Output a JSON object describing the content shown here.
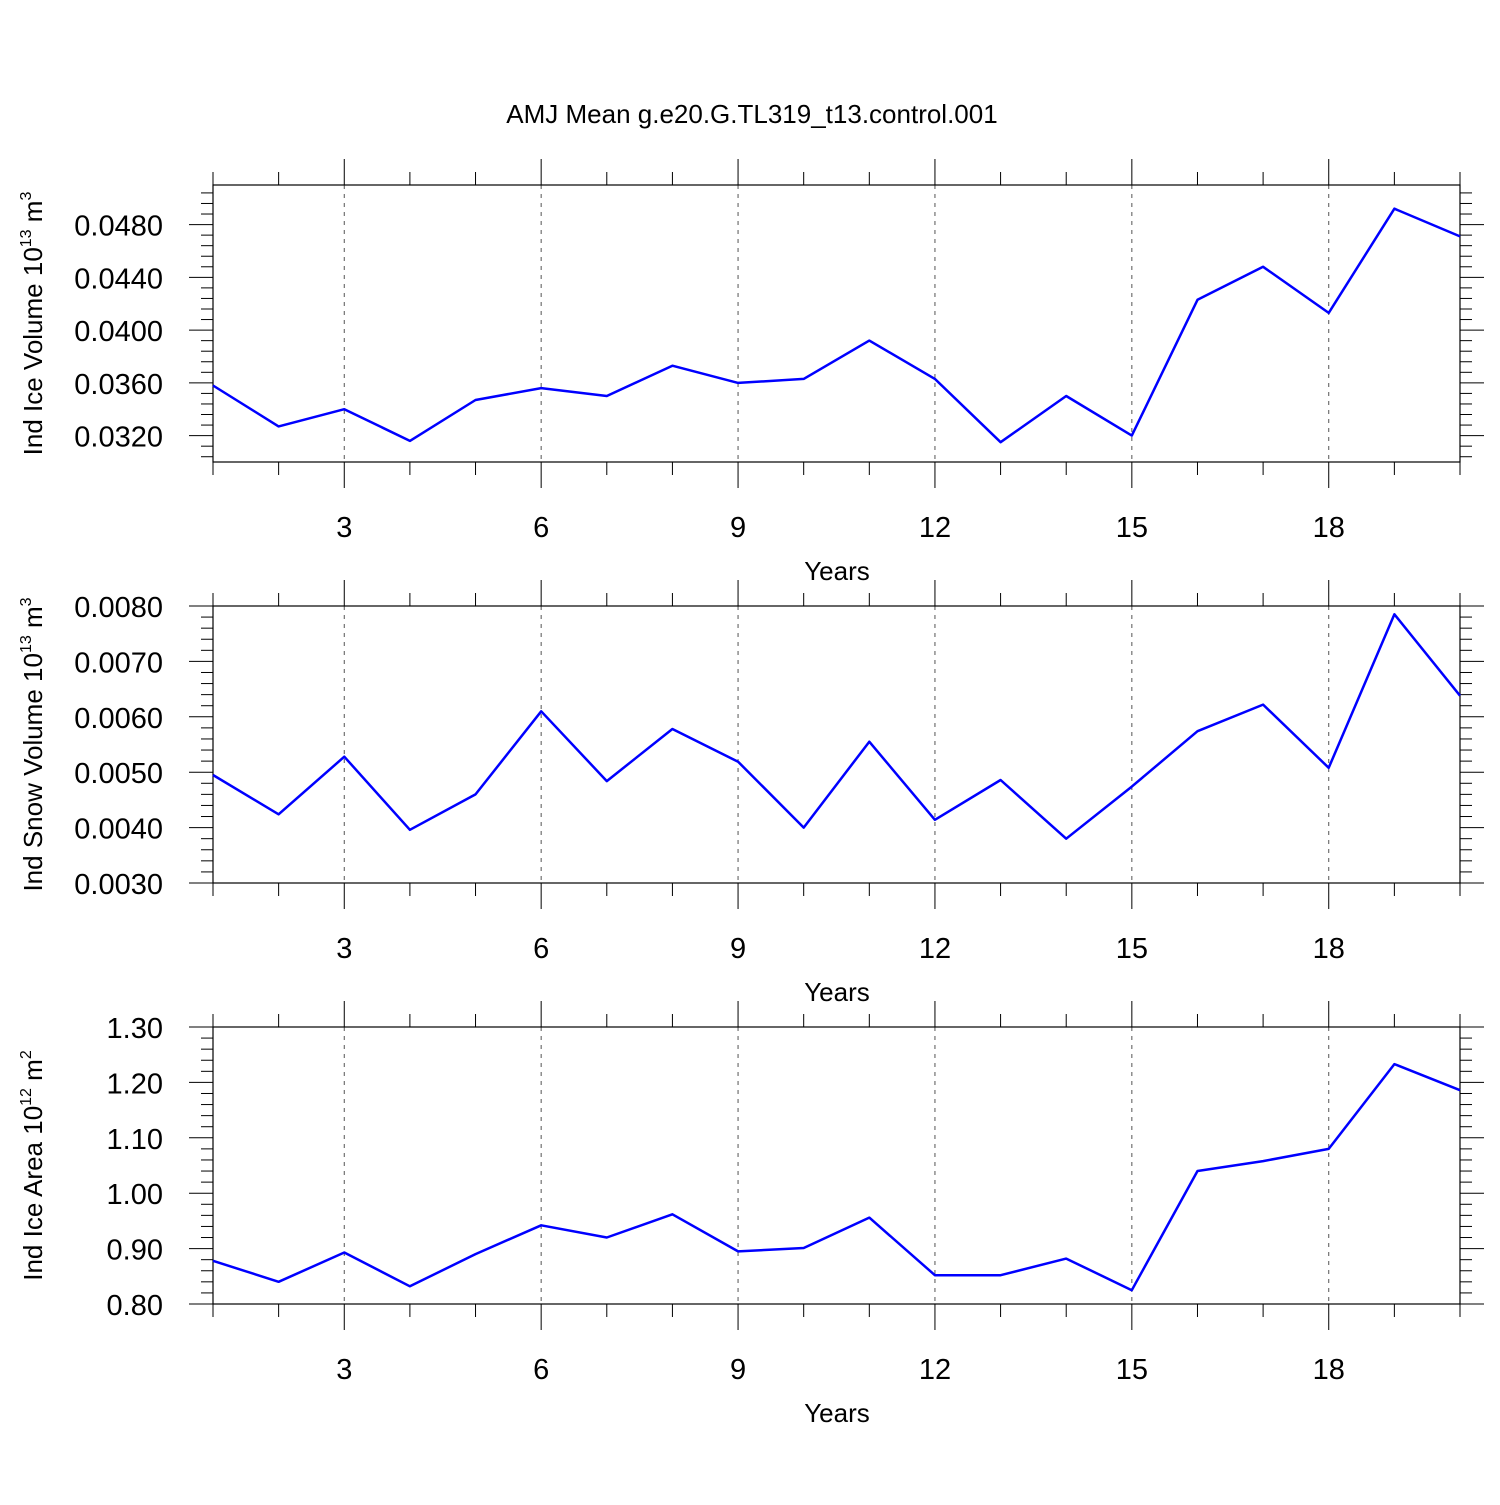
{
  "title": "AMJ Mean g.e20.G.TL319_t13.control.001",
  "colors": {
    "line": "#0000ff",
    "axis": "#000000",
    "grid": "#555555"
  },
  "chart_data": [
    {
      "type": "line",
      "xlabel": "Years",
      "ylabel_text": "Ind Ice Volume 10",
      "ylabel_exp": "13",
      "ylabel_unit": " m",
      "ylabel_unit_exp": "3",
      "xlim": [
        1,
        20
      ],
      "ylim": [
        0.03,
        0.051
      ],
      "xticks": [
        3,
        6,
        9,
        12,
        15,
        18
      ],
      "xtick_labels": [
        "3",
        "6",
        "9",
        "12",
        "15",
        "18"
      ],
      "yticks": [
        0.032,
        0.036,
        0.04,
        0.044,
        0.048
      ],
      "ytick_labels": [
        "0.0320",
        "0.0360",
        "0.0400",
        "0.0440",
        "0.0480"
      ],
      "grid": "vertical dashed at x ticks",
      "x": [
        1,
        2,
        3,
        4,
        5,
        6,
        7,
        8,
        9,
        10,
        11,
        12,
        13,
        14,
        15,
        16,
        17,
        18,
        19,
        20
      ],
      "values": [
        0.0358,
        0.0327,
        0.034,
        0.0316,
        0.0347,
        0.0356,
        0.035,
        0.0373,
        0.036,
        0.0363,
        0.0392,
        0.0363,
        0.0315,
        0.035,
        0.032,
        0.0423,
        0.0448,
        0.0413,
        0.0492,
        0.0471
      ]
    },
    {
      "type": "line",
      "xlabel": "Years",
      "ylabel_text": "Ind Snow Volume 10",
      "ylabel_exp": "13",
      "ylabel_unit": " m",
      "ylabel_unit_exp": "3",
      "xlim": [
        1,
        20
      ],
      "ylim": [
        0.003,
        0.008
      ],
      "xticks": [
        3,
        6,
        9,
        12,
        15,
        18
      ],
      "xtick_labels": [
        "3",
        "6",
        "9",
        "12",
        "15",
        "18"
      ],
      "yticks": [
        0.003,
        0.004,
        0.005,
        0.006,
        0.007,
        0.008
      ],
      "ytick_labels": [
        "0.0030",
        "0.0040",
        "0.0050",
        "0.0060",
        "0.0070",
        "0.0080"
      ],
      "grid": "vertical dashed at x ticks",
      "x": [
        1,
        2,
        3,
        4,
        5,
        6,
        7,
        8,
        9,
        10,
        11,
        12,
        13,
        14,
        15,
        16,
        17,
        18,
        19,
        20
      ],
      "values": [
        0.00495,
        0.00424,
        0.00528,
        0.00396,
        0.0046,
        0.0061,
        0.00484,
        0.00578,
        0.00519,
        0.004,
        0.00555,
        0.00414,
        0.00486,
        0.0038,
        0.00474,
        0.00574,
        0.00622,
        0.00508,
        0.00785,
        0.00638
      ]
    },
    {
      "type": "line",
      "xlabel": "Years",
      "ylabel_text": "Ind Ice Area 10",
      "ylabel_exp": "12",
      "ylabel_unit": " m",
      "ylabel_unit_exp": "2",
      "xlim": [
        1,
        20
      ],
      "ylim": [
        0.8,
        1.3
      ],
      "xticks": [
        3,
        6,
        9,
        12,
        15,
        18
      ],
      "xtick_labels": [
        "3",
        "6",
        "9",
        "12",
        "15",
        "18"
      ],
      "yticks": [
        0.8,
        0.9,
        1.0,
        1.1,
        1.2,
        1.3
      ],
      "ytick_labels": [
        "0.80",
        "0.90",
        "1.00",
        "1.10",
        "1.20",
        "1.30"
      ],
      "grid": "vertical dashed at x ticks",
      "x": [
        1,
        2,
        3,
        4,
        5,
        6,
        7,
        8,
        9,
        10,
        11,
        12,
        13,
        14,
        15,
        16,
        17,
        18,
        19,
        20
      ],
      "values": [
        0.878,
        0.84,
        0.893,
        0.832,
        0.89,
        0.942,
        0.92,
        0.962,
        0.895,
        0.901,
        0.956,
        0.852,
        0.852,
        0.882,
        0.825,
        1.04,
        1.058,
        1.08,
        1.233,
        1.186
      ]
    }
  ]
}
